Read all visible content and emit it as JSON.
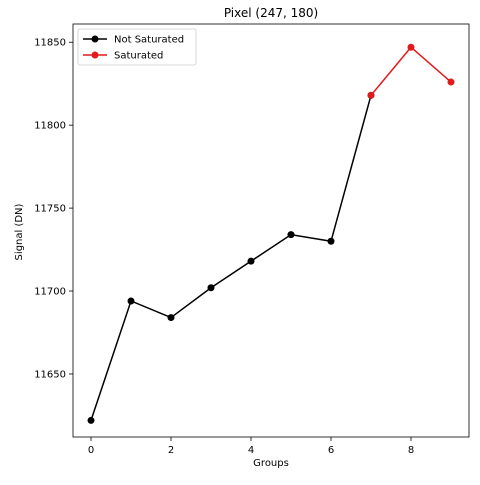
{
  "chart_data": {
    "type": "line",
    "title": "Pixel (247, 180)",
    "xlabel": "Groups",
    "ylabel": "Signal (DN)",
    "xlim": [
      -0.45,
      9.45
    ],
    "ylim": [
      11612,
      11861
    ],
    "xticks": [
      0,
      2,
      4,
      6,
      8
    ],
    "yticks": [
      11650,
      11700,
      11750,
      11800,
      11850
    ],
    "grid": false,
    "legend_position": "top-left",
    "series": [
      {
        "name": "Not Saturated",
        "color": "#000000",
        "x": [
          0,
          1,
          2,
          3,
          4,
          5,
          6,
          7
        ],
        "y": [
          11622,
          11694,
          11684,
          11702,
          11718,
          11734,
          11730,
          11818
        ]
      },
      {
        "name": "Saturated",
        "color": "#e31a1c",
        "x": [
          7,
          8,
          9
        ],
        "y": [
          11818,
          11847,
          11826
        ]
      }
    ]
  }
}
